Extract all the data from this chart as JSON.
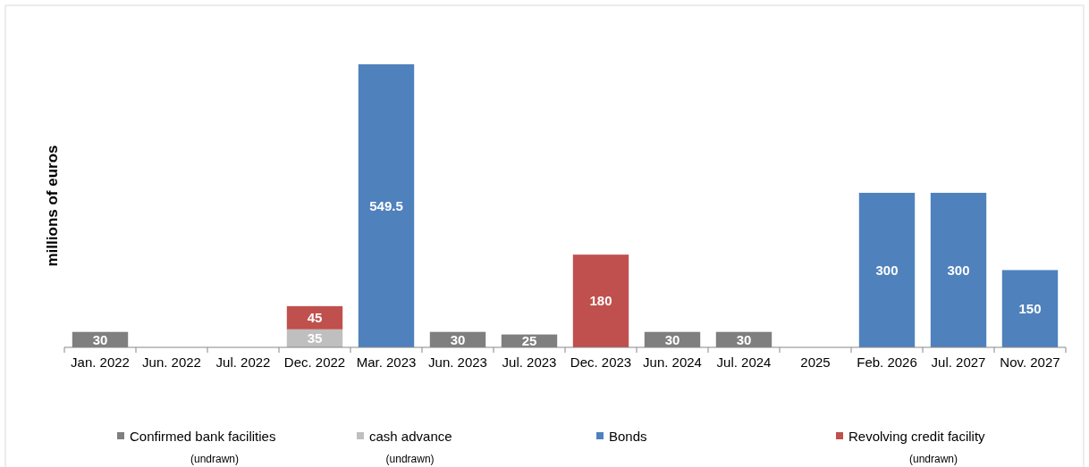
{
  "chart_data": {
    "type": "bar",
    "stacked": true,
    "data_labels": true,
    "ylabel": "millions of euros",
    "legend": "bottom",
    "categories": [
      "Jan. 2022",
      "Jun. 2022",
      "Jul. 2022",
      "Dec. 2022",
      "Mar. 2023",
      "Jun. 2023",
      "Jul. 2023",
      "Dec. 2023",
      "Jun. 2024",
      "Jul. 2024",
      "2025",
      "Feb. 2026",
      "Jul. 2027",
      "Nov. 2027"
    ],
    "series": [
      {
        "name": "Confirmed bank facilities (undrawn)",
        "color": "#7f7f7f",
        "values": [
          30,
          null,
          null,
          null,
          null,
          30,
          25,
          null,
          30,
          30,
          null,
          null,
          null,
          null
        ]
      },
      {
        "name": "cash advance (undrawn)",
        "color": "#bfbfbf",
        "values": [
          null,
          null,
          null,
          35,
          null,
          null,
          null,
          null,
          null,
          null,
          null,
          null,
          null,
          null
        ]
      },
      {
        "name": "Bonds",
        "color": "#4f81bd",
        "values": [
          null,
          null,
          null,
          null,
          549.5,
          null,
          null,
          null,
          null,
          null,
          null,
          300,
          300,
          150
        ]
      },
      {
        "name": "Revolving credit facility (undrawn)",
        "color": "#c0504d",
        "values": [
          null,
          null,
          null,
          45,
          null,
          null,
          null,
          180,
          null,
          null,
          null,
          null,
          null,
          null
        ]
      }
    ]
  }
}
